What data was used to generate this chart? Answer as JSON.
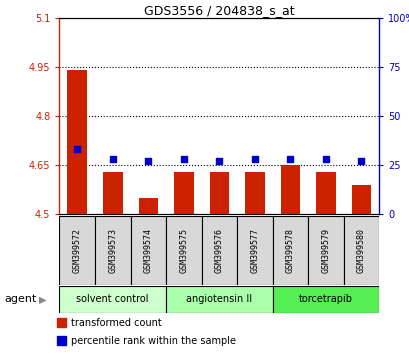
{
  "title": "GDS3556 / 204838_s_at",
  "samples": [
    "GSM399572",
    "GSM399573",
    "GSM399574",
    "GSM399575",
    "GSM399576",
    "GSM399577",
    "GSM399578",
    "GSM399579",
    "GSM399580"
  ],
  "transformed_counts": [
    4.94,
    4.63,
    4.55,
    4.63,
    4.63,
    4.63,
    4.65,
    4.63,
    4.59
  ],
  "percentile_ranks": [
    33,
    28,
    27,
    28,
    27,
    28,
    28,
    28,
    27
  ],
  "ylim_left": [
    4.5,
    5.1
  ],
  "ylim_right": [
    0,
    100
  ],
  "yticks_left": [
    4.5,
    4.65,
    4.8,
    4.95,
    5.1
  ],
  "ytick_labels_left": [
    "4.5",
    "4.65",
    "4.8",
    "4.95",
    "5.1"
  ],
  "yticks_right": [
    0,
    25,
    50,
    75,
    100
  ],
  "ytick_labels_right": [
    "0",
    "25",
    "50",
    "75",
    "100%"
  ],
  "bar_color": "#cc2200",
  "dot_color": "#0000cc",
  "bar_bottom": 4.5,
  "agents": [
    {
      "label": "solvent control",
      "samples": [
        0,
        1,
        2
      ],
      "color": "#ccffcc"
    },
    {
      "label": "angiotensin II",
      "samples": [
        3,
        4,
        5
      ],
      "color": "#aaffaa"
    },
    {
      "label": "torcetrapib",
      "samples": [
        6,
        7,
        8
      ],
      "color": "#55ee55"
    }
  ],
  "agent_label": "agent",
  "legend_bar_label": "transformed count",
  "legend_dot_label": "percentile rank within the sample",
  "sample_box_color": "#d8d8d8",
  "title_fontsize": 9,
  "tick_fontsize": 7,
  "sample_fontsize": 6,
  "agent_fontsize": 7,
  "legend_fontsize": 7
}
